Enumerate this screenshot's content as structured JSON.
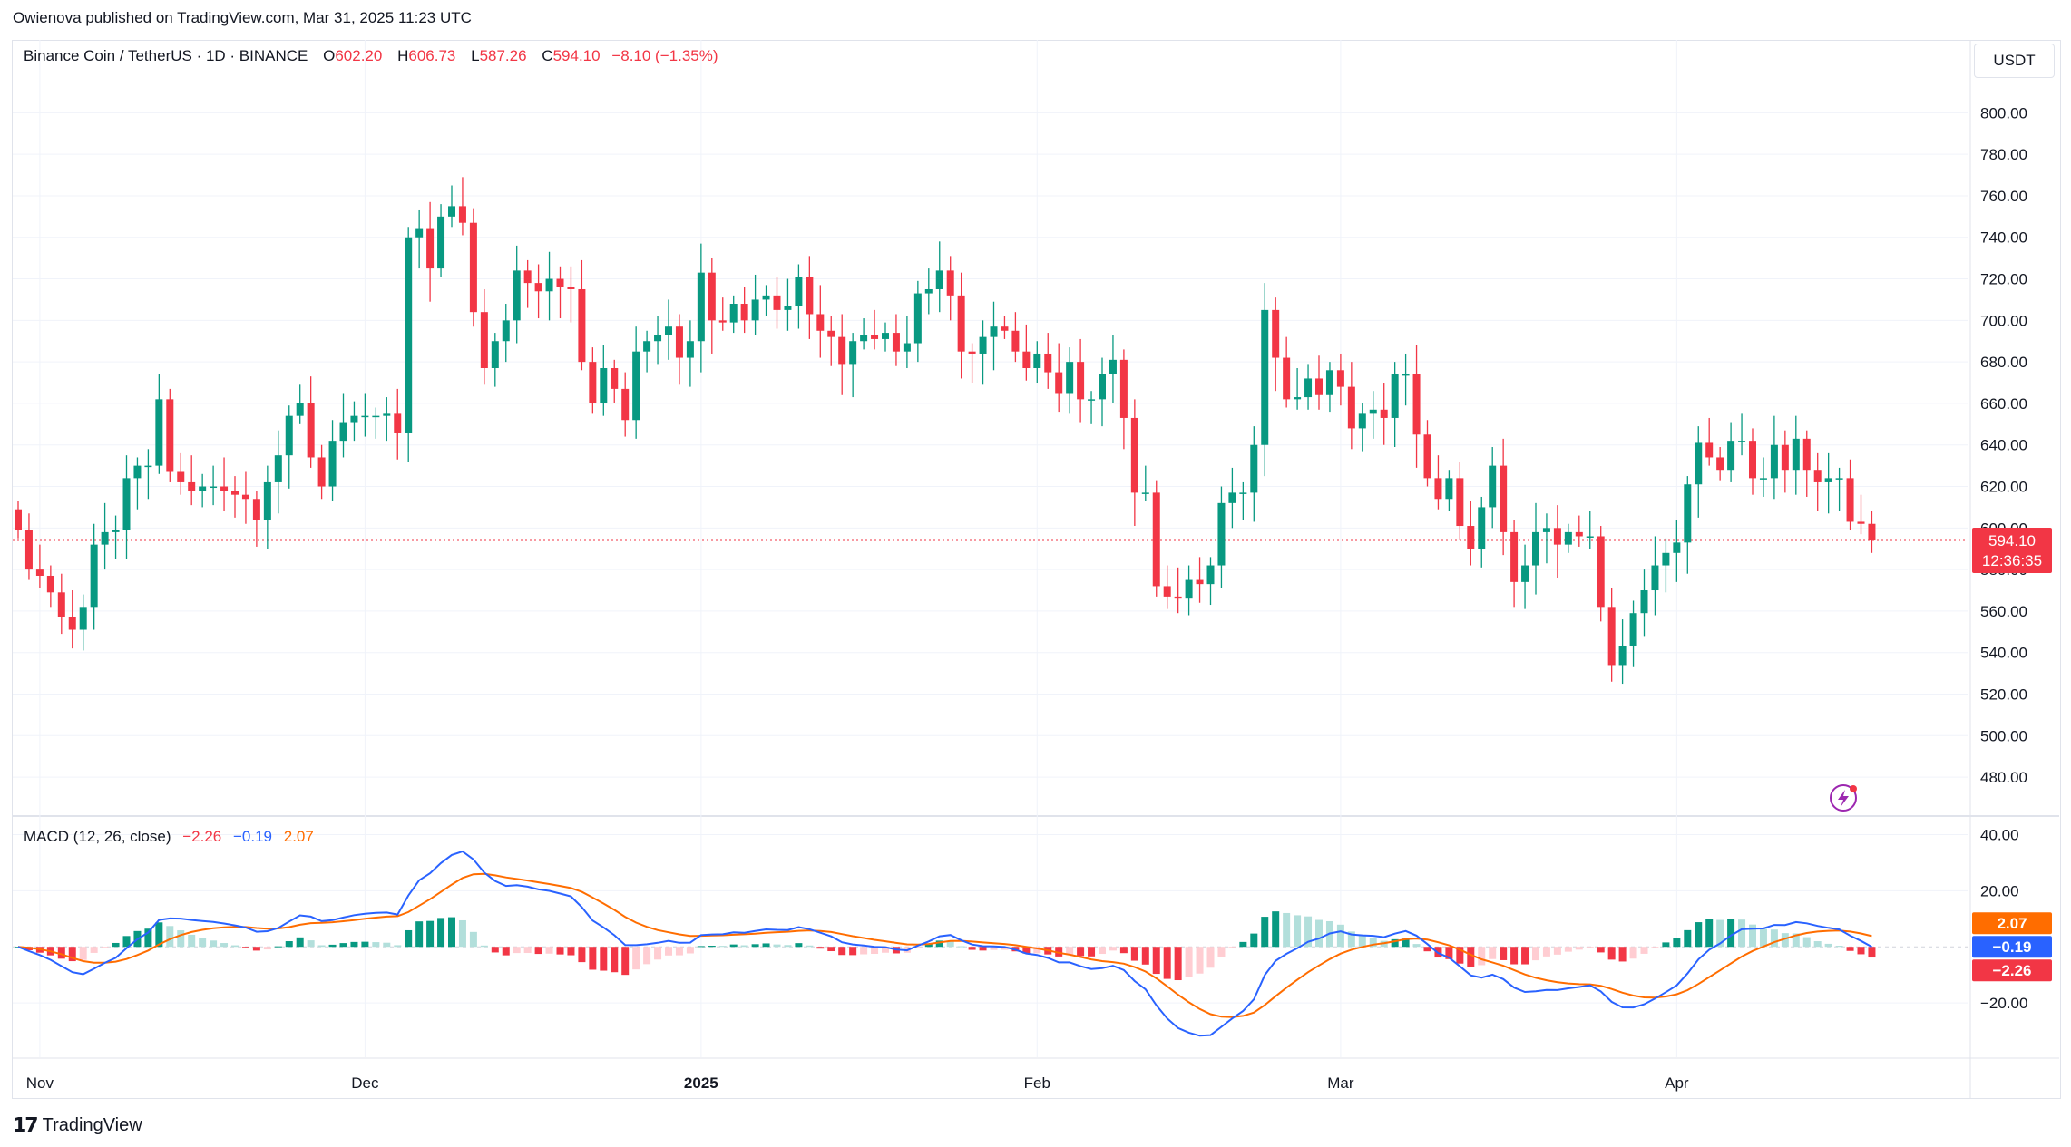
{
  "publisher": "Owienova published on TradingView.com, Mar 31, 2025 11:23 UTC",
  "symbol": {
    "name": "Binance Coin / TetherUS · 1D · BINANCE",
    "open_label": "O",
    "open": "602.20",
    "high_label": "H",
    "high": "606.73",
    "low_label": "L",
    "low": "587.26",
    "close_label": "C",
    "close": "594.10",
    "change": "−8.10 (−1.35%)"
  },
  "currency_button": "USDT",
  "price_tag": {
    "price": "594.10",
    "countdown": "12:36:35"
  },
  "macd_legend": {
    "name": "MACD (12, 26, close)",
    "hist": "−2.26",
    "macd": "−0.19",
    "signal": "2.07"
  },
  "macd_tags": {
    "signal": "2.07",
    "macd": "−0.19",
    "hist": "−2.26"
  },
  "brand": "TradingView",
  "colors": {
    "up": "#089981",
    "down": "#f23645",
    "up_light": "#b2dfdb",
    "down_light": "#ffcdd2",
    "macd_line": "#2962ff",
    "signal_line": "#ff6d00"
  },
  "chart_data": [
    {
      "type": "candlestick",
      "title": "Binance Coin / TetherUS · 1D · BINANCE",
      "y_axis_ticks": [
        "480.00",
        "500.00",
        "520.00",
        "540.00",
        "560.00",
        "580.00",
        "600.00",
        "620.00",
        "640.00",
        "660.00",
        "680.00",
        "700.00",
        "720.00",
        "740.00",
        "760.00",
        "780.00",
        "800.00"
      ],
      "x_axis_ticks": [
        "Nov",
        "Dec",
        "2025",
        "Feb",
        "Mar",
        "Apr"
      ],
      "ylim": [
        470,
        815
      ],
      "first_date": "2024-10-30",
      "candles": [
        [
          609,
          599
        ],
        [
          599,
          580
        ],
        [
          580,
          577
        ],
        [
          577,
          569
        ],
        [
          569,
          557
        ],
        [
          557,
          551
        ],
        [
          551,
          562
        ],
        [
          562,
          592
        ],
        [
          592,
          598
        ],
        [
          598,
          599
        ],
        [
          599,
          624
        ],
        [
          624,
          630
        ],
        [
          630,
          630
        ],
        [
          630,
          662
        ],
        [
          662,
          627
        ],
        [
          627,
          622
        ],
        [
          622,
          618
        ],
        [
          618,
          620
        ],
        [
          620,
          620
        ],
        [
          620,
          618
        ],
        [
          618,
          616
        ],
        [
          616,
          614
        ],
        [
          614,
          604
        ],
        [
          604,
          622
        ],
        [
          622,
          635
        ],
        [
          635,
          654
        ],
        [
          654,
          660
        ],
        [
          660,
          634
        ],
        [
          634,
          620
        ],
        [
          620,
          642
        ],
        [
          642,
          651
        ],
        [
          651,
          654
        ],
        [
          654,
          654
        ],
        [
          654,
          654
        ],
        [
          654,
          655
        ],
        [
          655,
          646
        ],
        [
          646,
          740
        ],
        [
          740,
          744
        ],
        [
          744,
          725
        ],
        [
          725,
          750
        ],
        [
          750,
          755
        ],
        [
          755,
          747
        ],
        [
          747,
          704
        ],
        [
          704,
          677
        ],
        [
          677,
          690
        ],
        [
          690,
          700
        ],
        [
          700,
          724
        ],
        [
          724,
          718
        ],
        [
          718,
          714
        ],
        [
          714,
          720
        ],
        [
          720,
          716
        ],
        [
          716,
          715
        ],
        [
          715,
          680
        ],
        [
          680,
          660
        ],
        [
          660,
          677
        ],
        [
          677,
          667
        ],
        [
          667,
          652
        ],
        [
          652,
          685
        ],
        [
          685,
          690
        ],
        [
          690,
          693
        ],
        [
          693,
          697
        ],
        [
          697,
          682
        ],
        [
          682,
          690
        ],
        [
          690,
          723
        ],
        [
          723,
          700
        ],
        [
          700,
          699
        ],
        [
          699,
          708
        ],
        [
          708,
          700
        ],
        [
          700,
          710
        ],
        [
          710,
          712
        ],
        [
          712,
          705
        ],
        [
          705,
          707
        ],
        [
          707,
          721
        ],
        [
          721,
          703
        ],
        [
          703,
          695
        ],
        [
          695,
          692
        ],
        [
          692,
          679
        ],
        [
          679,
          690
        ],
        [
          690,
          693
        ],
        [
          693,
          691
        ],
        [
          691,
          694
        ],
        [
          694,
          685
        ],
        [
          685,
          689
        ],
        [
          689,
          713
        ],
        [
          713,
          715
        ],
        [
          715,
          724
        ],
        [
          724,
          712
        ],
        [
          712,
          685
        ],
        [
          685,
          684
        ],
        [
          684,
          692
        ],
        [
          692,
          697
        ],
        [
          697,
          695
        ],
        [
          695,
          685
        ],
        [
          685,
          677
        ],
        [
          677,
          684
        ],
        [
          684,
          675
        ],
        [
          675,
          665
        ],
        [
          665,
          680
        ],
        [
          680,
          662
        ],
        [
          662,
          662
        ],
        [
          662,
          674
        ],
        [
          674,
          681
        ],
        [
          681,
          653
        ],
        [
          653,
          617
        ],
        [
          617,
          617
        ],
        [
          617,
          572
        ],
        [
          572,
          567
        ],
        [
          567,
          566
        ],
        [
          566,
          575
        ],
        [
          575,
          573
        ],
        [
          573,
          582
        ],
        [
          582,
          612
        ],
        [
          612,
          617
        ],
        [
          617,
          617
        ],
        [
          617,
          640
        ],
        [
          640,
          705
        ],
        [
          705,
          682
        ],
        [
          682,
          662
        ],
        [
          662,
          663
        ],
        [
          663,
          672
        ],
        [
          672,
          664
        ],
        [
          664,
          676
        ],
        [
          676,
          668
        ],
        [
          668,
          648
        ],
        [
          648,
          655
        ],
        [
          655,
          657
        ],
        [
          657,
          653
        ],
        [
          653,
          674
        ],
        [
          674,
          674
        ],
        [
          674,
          645
        ],
        [
          645,
          624
        ],
        [
          624,
          614
        ],
        [
          614,
          624
        ],
        [
          624,
          601
        ],
        [
          601,
          590
        ],
        [
          590,
          610
        ],
        [
          610,
          630
        ],
        [
          630,
          598
        ],
        [
          598,
          574
        ],
        [
          574,
          582
        ],
        [
          582,
          598
        ],
        [
          598,
          600
        ],
        [
          600,
          592
        ],
        [
          592,
          598
        ],
        [
          598,
          596
        ],
        [
          596,
          596
        ],
        [
          596,
          562
        ],
        [
          562,
          534
        ],
        [
          534,
          543
        ],
        [
          543,
          559
        ],
        [
          559,
          570
        ],
        [
          570,
          582
        ],
        [
          582,
          588
        ],
        [
          588,
          593
        ],
        [
          593,
          621
        ],
        [
          621,
          641
        ],
        [
          641,
          634
        ],
        [
          634,
          628
        ],
        [
          628,
          642
        ],
        [
          642,
          642
        ],
        [
          642,
          624
        ],
        [
          624,
          624
        ],
        [
          624,
          640
        ],
        [
          640,
          628
        ],
        [
          628,
          643
        ],
        [
          643,
          628
        ],
        [
          628,
          622
        ],
        [
          622,
          624
        ],
        [
          624,
          624
        ],
        [
          624,
          603
        ],
        [
          603,
          602
        ],
        [
          602,
          594
        ]
      ],
      "candle_note": "pairs are [open, close] in USDT; wick high/low read per candle"
    },
    {
      "type": "line",
      "title": "MACD (12, 26, close)",
      "y_axis_ticks": [
        "−20.00",
        "20.00",
        "40.00"
      ],
      "ylim": [
        -40,
        45
      ],
      "last": {
        "histogram": -2.26,
        "macd": -0.19,
        "signal": 2.07
      }
    }
  ]
}
